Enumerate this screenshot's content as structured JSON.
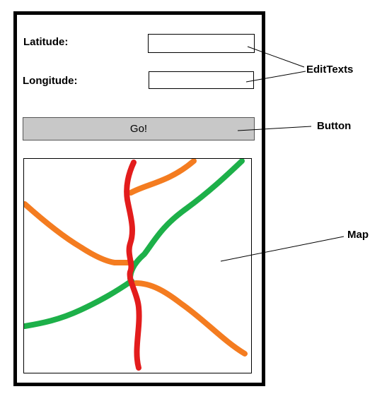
{
  "form": {
    "latitude_label": "Latitude:",
    "longitude_label": "Longitude:",
    "latitude_value": "",
    "longitude_value": "",
    "go_label": "Go!"
  },
  "annotations": {
    "edit_texts": "EditTexts",
    "button": "Button",
    "map": "Map"
  },
  "map": {
    "line_colors": {
      "red": "#e31c1c",
      "orange": "#f47c20",
      "green": "#1db049"
    }
  },
  "colors": {
    "button_fill": "#c8c8c8",
    "frame": "#000000"
  }
}
